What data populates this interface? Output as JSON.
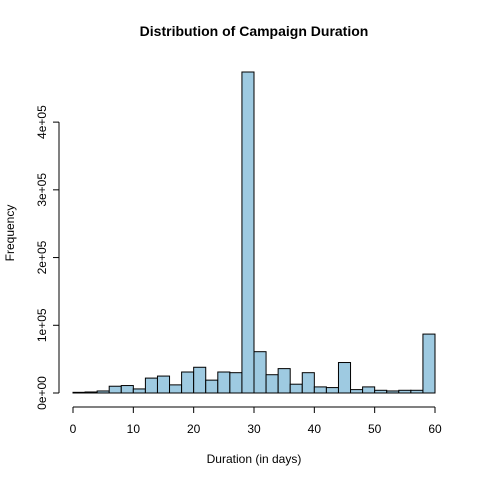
{
  "chart_data": {
    "type": "bar",
    "title": "Distribution of Campaign Duration",
    "xlabel": "Duration (in days)",
    "ylabel": "Frequency",
    "bin_width": 2,
    "bins_start": [
      0,
      2,
      4,
      6,
      8,
      10,
      12,
      14,
      16,
      18,
      20,
      22,
      24,
      26,
      28,
      30,
      32,
      34,
      36,
      38,
      40,
      42,
      44,
      46,
      48,
      50,
      52,
      54,
      56,
      58
    ],
    "values": [
      1000,
      1500,
      3000,
      10000,
      11000,
      6000,
      22000,
      25000,
      12000,
      31000,
      38000,
      19000,
      31000,
      30000,
      474000,
      61000,
      27000,
      36000,
      13000,
      30000,
      9000,
      8000,
      45000,
      5000,
      9000,
      4000,
      3000,
      4000,
      4000,
      87000
    ],
    "xlim": [
      0,
      60
    ],
    "ylim": [
      0,
      474000
    ],
    "x_ticks": [
      0,
      10,
      20,
      30,
      40,
      50,
      60
    ],
    "x_tick_labels": [
      "0",
      "10",
      "20",
      "30",
      "40",
      "50",
      "60"
    ],
    "y_ticks": [
      0,
      100000,
      200000,
      300000,
      400000
    ],
    "y_tick_labels": [
      "0e+00",
      "1e+05",
      "2e+05",
      "3e+05",
      "4e+05"
    ],
    "grid": false,
    "bar_color": "#9ecae1"
  }
}
